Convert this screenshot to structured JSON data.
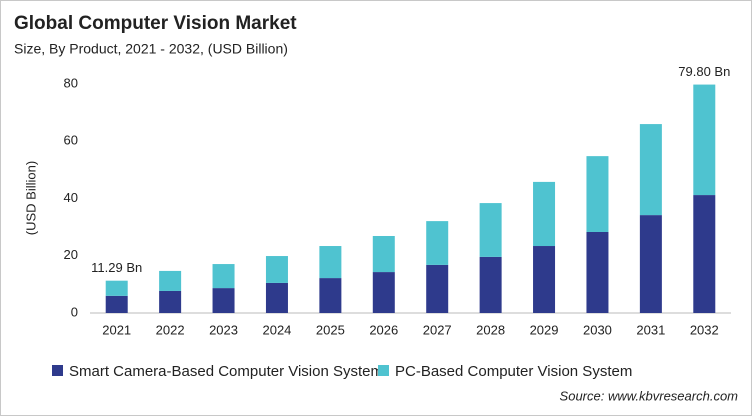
{
  "chart_data": {
    "type": "stacked_bar",
    "title": "Global Computer Vision Market",
    "subtitle": "Size, By Product, 2021 - 2032, (USD Billion)",
    "y_label": "(USD Billion)",
    "source": "Source: www.kbvresearch.com",
    "categories": [
      "2021",
      "2022",
      "2023",
      "2024",
      "2025",
      "2026",
      "2027",
      "2028",
      "2029",
      "2030",
      "2031",
      "2032"
    ],
    "series": [
      {
        "name": "Smart Camera-Based Computer Vision System",
        "color": "#2e3a8c",
        "values": [
          6.0,
          7.7,
          8.7,
          10.5,
          12.2,
          14.3,
          16.8,
          19.6,
          23.4,
          28.3,
          34.2,
          41.2
        ]
      },
      {
        "name": "PC-Based Computer Vision System",
        "color": "#4fc3d0",
        "values": [
          5.29,
          7.0,
          8.4,
          9.4,
          11.2,
          12.6,
          15.3,
          18.8,
          22.4,
          26.5,
          31.8,
          38.6
        ]
      }
    ],
    "annotations": [
      {
        "text": "11.29 Bn",
        "x": "2021",
        "value": 11.29
      },
      {
        "text": "79.80 Bn",
        "x": "2032",
        "value": 79.8
      }
    ],
    "ylim": [
      0,
      80
    ],
    "yticks": [
      0,
      20,
      40,
      60,
      80
    ],
    "grid": false,
    "legend": "bottom"
  }
}
